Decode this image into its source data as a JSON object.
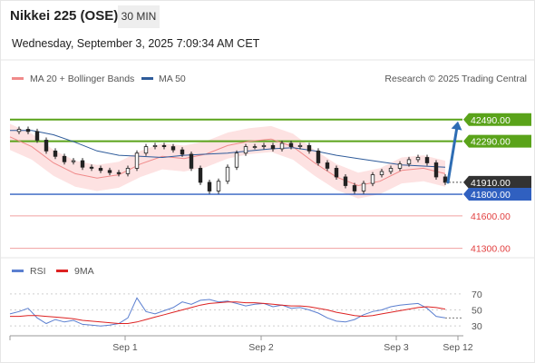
{
  "header": {
    "title": "Nikkei 225 (OSE)",
    "timeframe": "30 MIN",
    "datetime": "Wednesday, September 3, 2025 7:09:34 AM CET"
  },
  "legend": {
    "ma20": "MA 20 + Bollinger Bands",
    "ma50": "MA 50",
    "credit": "Research © 2025 Trading Central",
    "rsi": "RSI",
    "rsi_ma": "9MA"
  },
  "colors": {
    "ma20": "#f08a8a",
    "ma50": "#2e5b9a",
    "bollinger_fill": "#fde2e2",
    "resistance": "#5aa31a",
    "support": "#3060c0",
    "target_red": "#e24040",
    "current": "#333333",
    "arrow": "#2e6db4",
    "rsi": "#5b7fd0",
    "rsi_ma": "#dd2222"
  },
  "chart_data": [
    {
      "type": "line",
      "subtype": "candlestick",
      "series": [
        {
          "name": "MA 20 + Bollinger Bands",
          "x": [
            0,
            24,
            48,
            72,
            96,
            120,
            144,
            168,
            192,
            216,
            240,
            264,
            288,
            312,
            336,
            360,
            384,
            408,
            432,
            456,
            480
          ],
          "values": [
            42330,
            42240,
            42090,
            41990,
            41950,
            41980,
            42080,
            42150,
            42130,
            42170,
            42250,
            42290,
            42310,
            42240,
            42090,
            41960,
            41880,
            41920,
            42020,
            42040,
            41990
          ]
        },
        {
          "name": "MA 50",
          "x": [
            0,
            24,
            48,
            72,
            96,
            120,
            144,
            168,
            192,
            216,
            240,
            264,
            288,
            312,
            336,
            360,
            384,
            408,
            432,
            456,
            480
          ],
          "values": [
            42390,
            42390,
            42350,
            42280,
            42200,
            42160,
            42150,
            42140,
            42160,
            42170,
            42180,
            42200,
            42220,
            42230,
            42200,
            42160,
            42130,
            42100,
            42070,
            42060,
            42050
          ]
        },
        {
          "name": "price",
          "x": [
            0,
            10,
            20,
            30,
            40,
            50,
            60,
            70,
            80,
            90,
            100,
            110,
            120,
            130,
            140,
            150,
            160,
            170,
            180,
            190,
            200,
            210,
            220,
            230,
            240,
            250,
            260,
            270,
            280,
            290,
            300,
            310,
            320,
            330,
            340,
            350,
            360,
            370,
            380,
            390,
            400,
            410,
            420,
            430,
            440,
            450,
            460,
            470,
            480
          ],
          "values": [
            42380,
            42400,
            42380,
            42300,
            42200,
            42150,
            42100,
            42110,
            42050,
            42040,
            42020,
            42000,
            41990,
            42040,
            42180,
            42240,
            42250,
            42240,
            42210,
            42170,
            42040,
            41910,
            41830,
            41920,
            42050,
            42180,
            42240,
            42240,
            42250,
            42220,
            42270,
            42240,
            42250,
            42200,
            42090,
            42040,
            41960,
            41880,
            41830,
            41900,
            41980,
            42010,
            42040,
            42080,
            42120,
            42140,
            42090,
            41960,
            41910
          ]
        }
      ],
      "price_levels": [
        {
          "label": "42490.00",
          "value": 42490,
          "kind": "resistance"
        },
        {
          "label": "42290.00",
          "value": 42290,
          "kind": "resistance"
        },
        {
          "label": "41910.00",
          "value": 41910,
          "kind": "current"
        },
        {
          "label": "41800.00",
          "value": 41800,
          "kind": "support"
        },
        {
          "label": "41600.00",
          "value": 41600,
          "kind": "target"
        },
        {
          "label": "41300.00",
          "value": 41300,
          "kind": "target"
        }
      ],
      "ylim": [
        41230,
        42790
      ],
      "grid": false
    },
    {
      "type": "line",
      "series": [
        {
          "name": "RSI",
          "x": [
            0,
            10,
            20,
            30,
            40,
            50,
            60,
            70,
            80,
            90,
            100,
            110,
            120,
            130,
            140,
            150,
            160,
            170,
            180,
            190,
            200,
            210,
            220,
            230,
            240,
            250,
            260,
            270,
            280,
            290,
            300,
            310,
            320,
            330,
            340,
            350,
            360,
            370,
            380,
            390,
            400,
            410,
            420,
            430,
            440,
            450,
            460,
            470,
            480
          ],
          "values": [
            45,
            48,
            52,
            40,
            33,
            38,
            35,
            37,
            32,
            31,
            30,
            31,
            33,
            40,
            65,
            48,
            45,
            49,
            53,
            60,
            57,
            62,
            63,
            60,
            61,
            58,
            55,
            57,
            58,
            54,
            56,
            52,
            53,
            50,
            46,
            40,
            36,
            35,
            38,
            44,
            48,
            50,
            54,
            56,
            57,
            58,
            52,
            42,
            40
          ]
        },
        {
          "name": "9MA",
          "x": [
            0,
            10,
            20,
            30,
            40,
            50,
            60,
            70,
            80,
            90,
            100,
            110,
            120,
            130,
            140,
            150,
            160,
            170,
            180,
            190,
            200,
            210,
            220,
            230,
            240,
            250,
            260,
            270,
            280,
            290,
            300,
            310,
            320,
            330,
            340,
            350,
            360,
            370,
            380,
            390,
            400,
            410,
            420,
            430,
            440,
            450,
            460,
            470,
            480
          ],
          "values": [
            42,
            42,
            43,
            43,
            42,
            41,
            40,
            39,
            37,
            36,
            35,
            34,
            33,
            33,
            35,
            38,
            41,
            44,
            47,
            50,
            53,
            56,
            58,
            59,
            60,
            60,
            59,
            59,
            58,
            57,
            56,
            55,
            55,
            54,
            52,
            50,
            47,
            45,
            43,
            42,
            43,
            45,
            47,
            49,
            51,
            53,
            54,
            53,
            51
          ]
        }
      ],
      "y_ticks": [
        "70",
        "50",
        "30"
      ],
      "ylim": [
        20,
        80
      ],
      "grid": false
    }
  ],
  "x_axis": {
    "labels": [
      "Sep 1",
      "Sep 2",
      "Sep 3",
      "Sep 12"
    ]
  }
}
